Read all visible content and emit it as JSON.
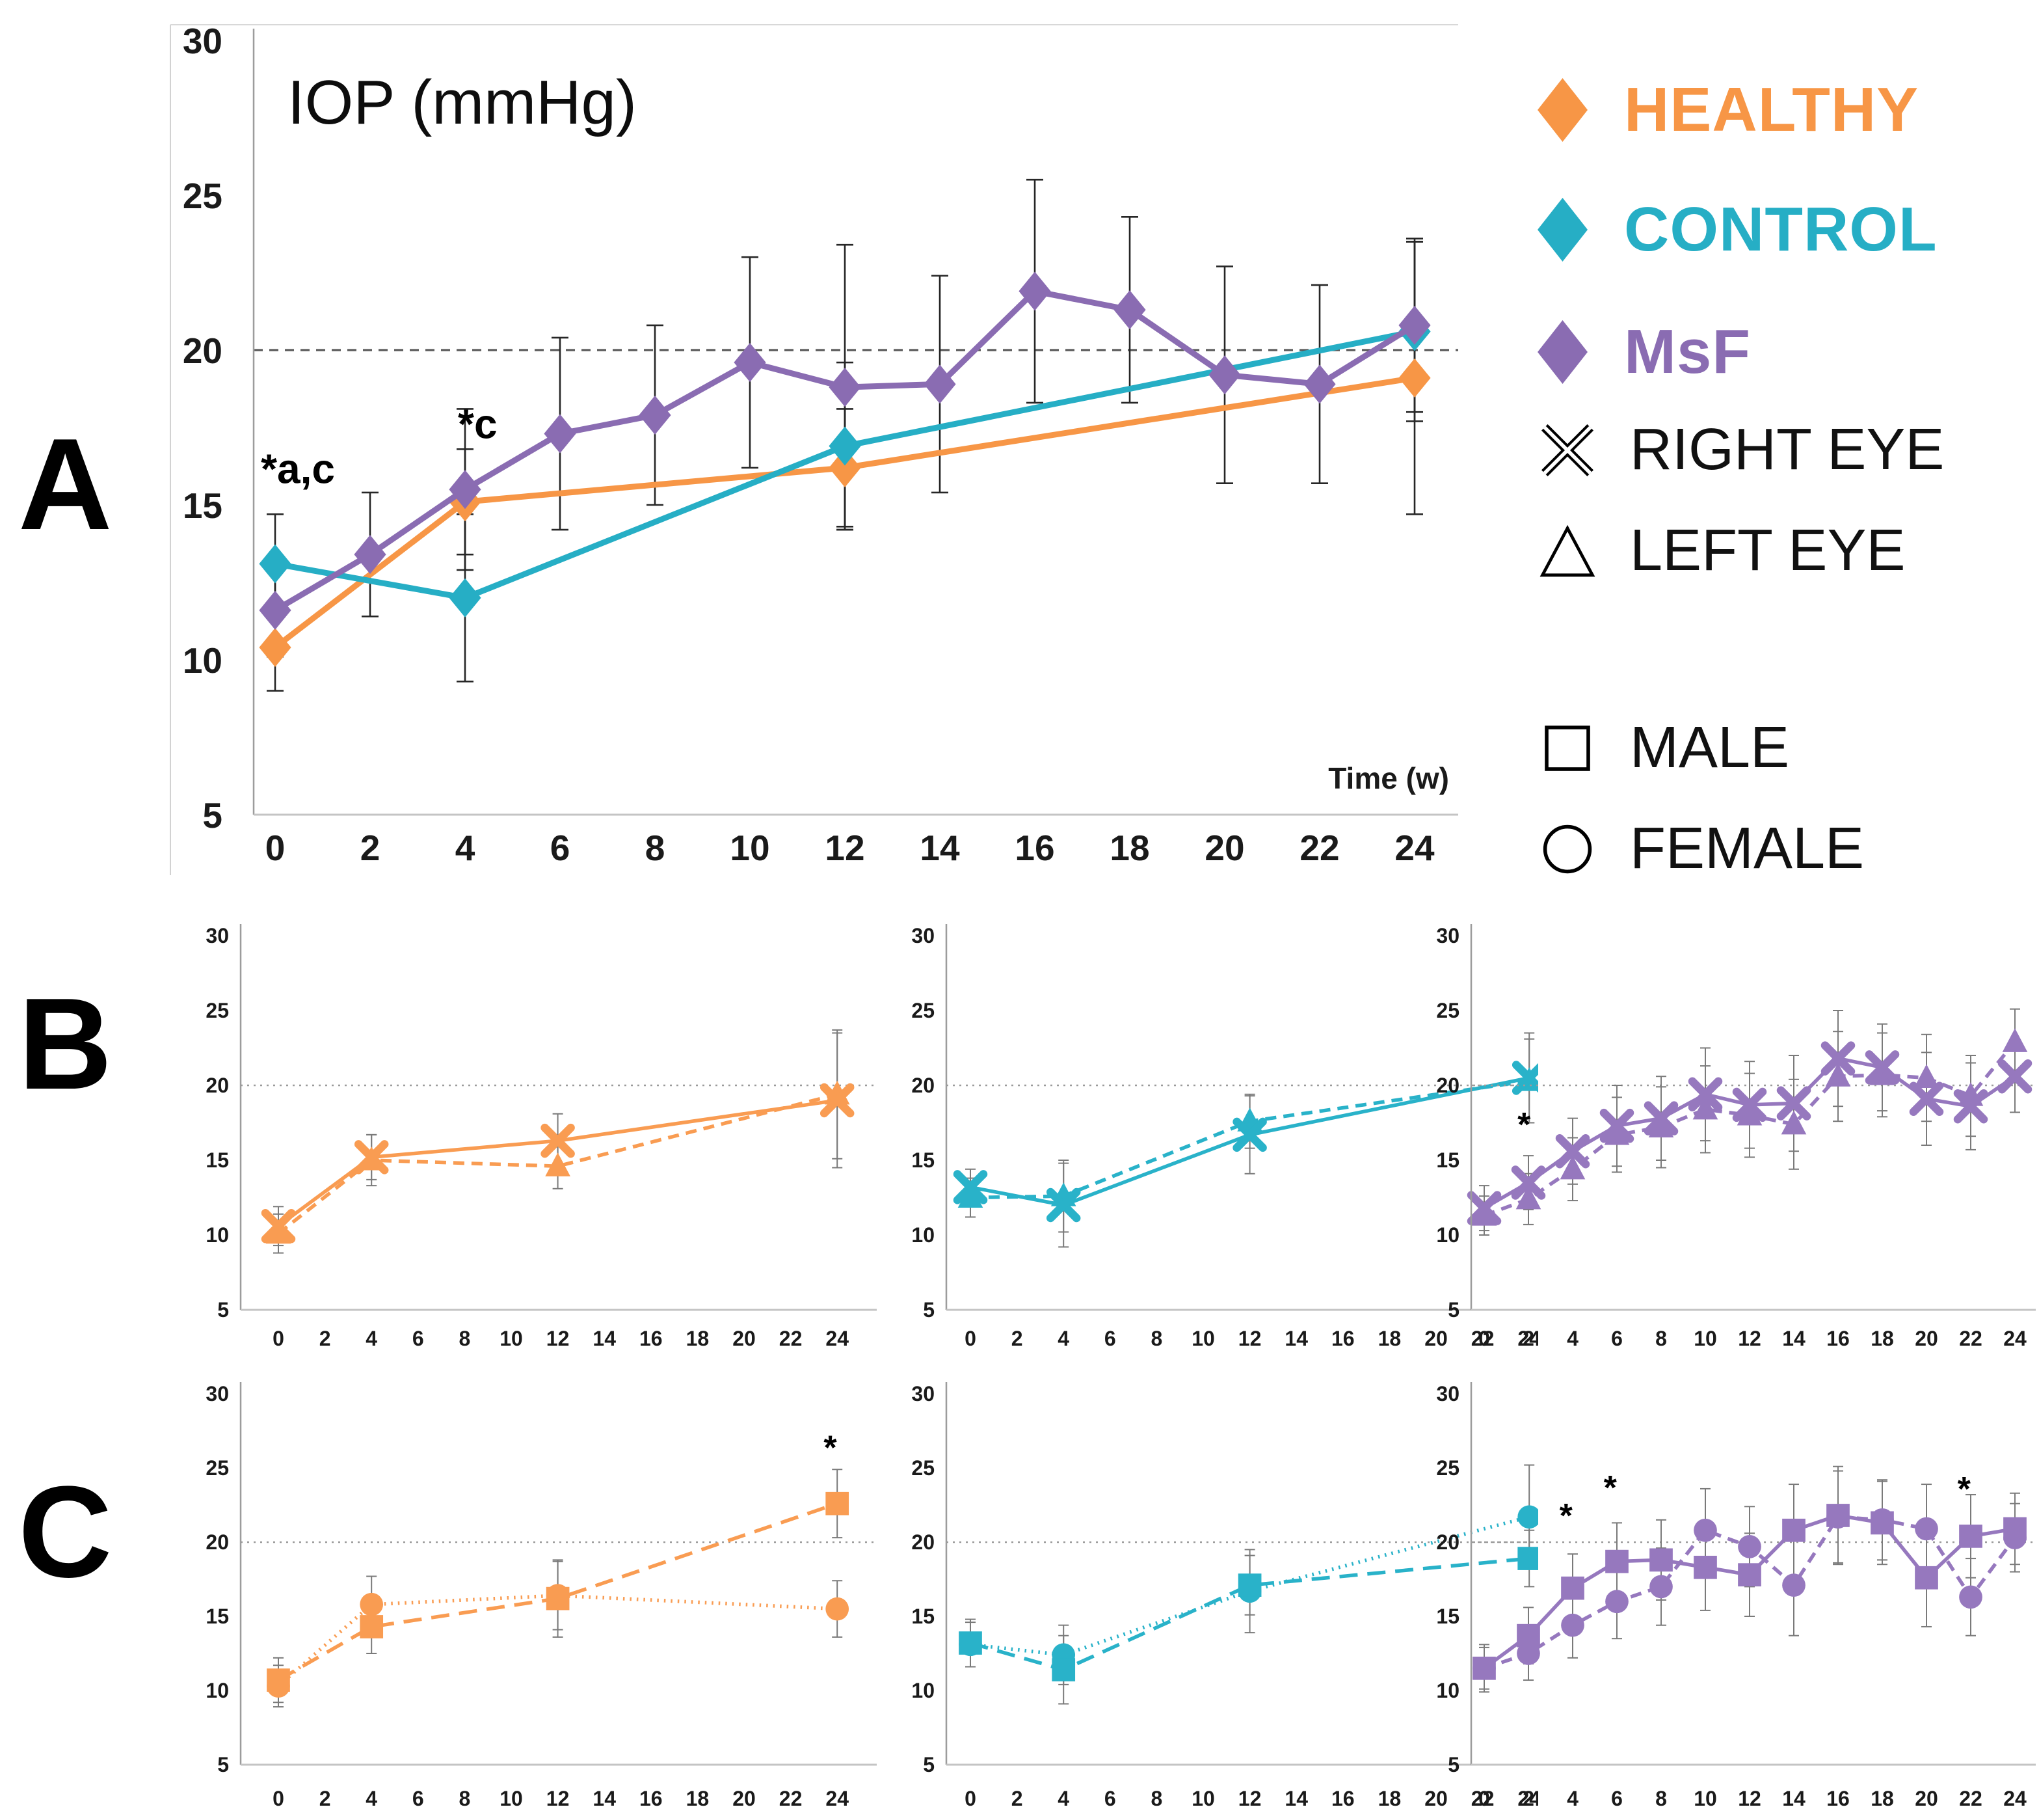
{
  "figure": {
    "background": "#ffffff"
  },
  "panels": [
    {
      "letter": "A"
    },
    {
      "letter": "B"
    },
    {
      "letter": "C"
    }
  ],
  "legend": {
    "series": [
      {
        "label": "HEALTHY",
        "color": "#F79646",
        "marker": "diamond"
      },
      {
        "label": "CONTROL",
        "color": "#26AEC5",
        "marker": "diamond"
      },
      {
        "label": "MsF",
        "color": "#8A6CB2",
        "marker": "diamond"
      }
    ],
    "symbols": [
      {
        "label": "RIGHT EYE",
        "marker": "x"
      },
      {
        "label": "LEFT EYE",
        "marker": "triangle"
      },
      {
        "label": "MALE",
        "marker": "square"
      },
      {
        "label": "FEMALE",
        "marker": "circle"
      }
    ]
  },
  "chart_data": [
    {
      "id": "A",
      "type": "line",
      "title": "IOP (mmHg)",
      "xlabel": "Time (w)",
      "ylim": [
        5,
        30
      ],
      "yticks": [
        30,
        25,
        20,
        15,
        10,
        5
      ],
      "xticks": [
        0,
        2,
        4,
        6,
        8,
        10,
        12,
        14,
        16,
        18,
        20,
        22,
        24
      ],
      "refline": 20,
      "grid": false,
      "legend_position": "right-outside",
      "series": [
        {
          "name": "HEALTHY",
          "color": "#F79646",
          "marker": "diamond",
          "line": "solid",
          "x": [
            0,
            4,
            12,
            24
          ],
          "y": [
            10.4,
            15.1,
            16.2,
            19.1
          ],
          "err": [
            1.4,
            1.7,
            1.9,
            4.4
          ]
        },
        {
          "name": "CONTROL",
          "color": "#26AEC5",
          "marker": "diamond",
          "line": "solid",
          "x": [
            0,
            4,
            12,
            24
          ],
          "y": [
            13.1,
            12.0,
            16.9,
            20.6
          ],
          "err": [
            1.6,
            2.7,
            2.7,
            2.9
          ]
        },
        {
          "name": "MsF",
          "color": "#8A6CB2",
          "marker": "diamond",
          "line": "solid",
          "x": [
            0,
            2,
            4,
            6,
            8,
            10,
            12,
            14,
            16,
            18,
            20,
            22,
            24
          ],
          "y": [
            11.6,
            13.4,
            15.5,
            17.3,
            17.9,
            19.6,
            18.8,
            18.9,
            21.9,
            21.3,
            19.2,
            18.9,
            20.8
          ],
          "err": [
            1.5,
            2.0,
            2.6,
            3.1,
            2.9,
            3.4,
            4.6,
            3.5,
            3.6,
            3.0,
            3.5,
            3.2,
            2.8
          ]
        }
      ],
      "annotations": [
        {
          "x": -0.3,
          "y": 15.7,
          "text": "*a,c",
          "anchor": "start"
        },
        {
          "x": 3.85,
          "y": 17.15,
          "text": "*c",
          "anchor": "start"
        }
      ]
    },
    {
      "id": "B1",
      "type": "line",
      "group": "HEALTHY",
      "ylim": [
        5,
        30
      ],
      "yticks": [
        30,
        25,
        20,
        15,
        10,
        5
      ],
      "xticks": [
        0,
        2,
        4,
        6,
        8,
        10,
        12,
        14,
        16,
        18,
        20,
        22,
        24
      ],
      "refline": 20,
      "series": [
        {
          "name": "LEFT EYE",
          "color": "#F99C52",
          "marker": "triangle",
          "line": "dashed",
          "x": [
            0,
            4,
            12,
            24
          ],
          "y": [
            10.1,
            15.0,
            14.6,
            19.4
          ],
          "err": [
            1.3,
            1.7,
            1.5,
            4.3
          ]
        },
        {
          "name": "RIGHT EYE",
          "color": "#F99C52",
          "marker": "x",
          "line": "solid",
          "x": [
            0,
            4,
            12,
            24
          ],
          "y": [
            10.6,
            15.2,
            16.3,
            19.0
          ],
          "err": [
            1.3,
            1.5,
            1.8,
            4.5
          ]
        }
      ],
      "annotations": []
    },
    {
      "id": "B2",
      "type": "line",
      "group": "CONTROL",
      "ylim": [
        5,
        30
      ],
      "yticks": [
        30,
        25,
        20,
        15,
        10,
        5
      ],
      "xticks": [
        0,
        2,
        4,
        6,
        8,
        10,
        12,
        14,
        16,
        18,
        20,
        22,
        24
      ],
      "refline": 20,
      "series": [
        {
          "name": "LEFT EYE",
          "color": "#29B2C9",
          "marker": "triangle",
          "line": "dashed",
          "x": [
            0,
            4,
            12,
            24
          ],
          "y": [
            12.5,
            12.6,
            17.6,
            20.3
          ],
          "err": [
            1.3,
            2.4,
            1.8,
            2.8
          ]
        },
        {
          "name": "RIGHT EYE",
          "color": "#29B2C9",
          "marker": "x",
          "line": "solid",
          "x": [
            0,
            4,
            12,
            24
          ],
          "y": [
            13.2,
            12.0,
            16.7,
            20.5
          ],
          "err": [
            1.2,
            2.8,
            2.6,
            3.0
          ]
        }
      ],
      "annotations": []
    },
    {
      "id": "B3",
      "type": "line",
      "group": "MsF",
      "ylim": [
        5,
        30
      ],
      "yticks": [
        30,
        25,
        20,
        15,
        10,
        5
      ],
      "xticks": [
        0,
        2,
        4,
        6,
        8,
        10,
        12,
        14,
        16,
        18,
        20,
        22,
        24
      ],
      "refline": 20,
      "series": [
        {
          "name": "LEFT EYE",
          "color": "#9678BE",
          "marker": "triangle",
          "line": "dashed",
          "x": [
            0,
            2,
            4,
            6,
            8,
            10,
            12,
            14,
            16,
            18,
            20,
            22,
            24
          ],
          "y": [
            11.3,
            12.4,
            14.4,
            16.7,
            17.2,
            18.4,
            18.0,
            17.4,
            20.6,
            20.7,
            20.5,
            19.3,
            22.9
          ],
          "err": [
            1.3,
            1.7,
            2.1,
            2.5,
            2.7,
            2.9,
            2.8,
            3.0,
            3.0,
            2.8,
            2.9,
            2.7,
            2.2
          ]
        },
        {
          "name": "RIGHT EYE",
          "color": "#9678BE",
          "marker": "x",
          "line": "solid",
          "x": [
            0,
            2,
            4,
            6,
            8,
            10,
            12,
            14,
            16,
            18,
            20,
            22,
            24
          ],
          "y": [
            11.8,
            13.5,
            15.6,
            17.3,
            17.8,
            19.4,
            18.7,
            18.8,
            21.8,
            21.2,
            19.1,
            18.6,
            20.6
          ],
          "err": [
            1.5,
            1.8,
            2.2,
            2.7,
            2.8,
            3.1,
            2.9,
            3.2,
            3.2,
            2.9,
            3.1,
            2.9,
            2.4
          ]
        }
      ],
      "annotations": [
        {
          "x": 1.8,
          "y": 16.6,
          "text": "*",
          "anchor": "middle"
        }
      ]
    },
    {
      "id": "C1",
      "type": "line",
      "group": "HEALTHY",
      "ylim": [
        5,
        30
      ],
      "yticks": [
        30,
        25,
        20,
        15,
        10,
        5
      ],
      "xticks": [
        0,
        2,
        4,
        6,
        8,
        10,
        12,
        14,
        16,
        18,
        20,
        22,
        24
      ],
      "refline": 20,
      "series": [
        {
          "name": "FEMALE",
          "color": "#F99C52",
          "marker": "circle",
          "line": "dotted",
          "x": [
            0,
            4,
            12,
            24
          ],
          "y": [
            10.3,
            15.8,
            16.4,
            15.5
          ],
          "err": [
            1.4,
            1.9,
            2.3,
            1.9
          ]
        },
        {
          "name": "MALE",
          "color": "#F99C52",
          "marker": "square",
          "line": "longdash",
          "x": [
            0,
            4,
            12,
            24
          ],
          "y": [
            10.7,
            14.3,
            16.2,
            22.6
          ],
          "err": [
            1.5,
            1.8,
            2.6,
            2.3
          ]
        }
      ],
      "annotations": [
        {
          "x": 23.7,
          "y": 25.6,
          "text": "*",
          "anchor": "middle"
        }
      ]
    },
    {
      "id": "C2",
      "type": "line",
      "group": "CONTROL",
      "ylim": [
        5,
        30
      ],
      "yticks": [
        30,
        25,
        20,
        15,
        10,
        5
      ],
      "xticks": [
        0,
        2,
        4,
        6,
        8,
        10,
        12,
        14,
        16,
        18,
        20,
        22,
        24
      ],
      "refline": 20,
      "series": [
        {
          "name": "FEMALE",
          "color": "#29B2C9",
          "marker": "circle",
          "line": "dotted",
          "x": [
            0,
            4,
            12,
            24
          ],
          "y": [
            13.1,
            12.4,
            16.7,
            21.7
          ],
          "err": [
            1.5,
            2.0,
            2.8,
            3.5
          ]
        },
        {
          "name": "MALE",
          "color": "#29B2C9",
          "marker": "square",
          "line": "longdash",
          "x": [
            0,
            4,
            12,
            24
          ],
          "y": [
            13.2,
            11.4,
            17.1,
            18.9
          ],
          "err": [
            1.6,
            2.3,
            2.0,
            1.9
          ]
        }
      ],
      "annotations": []
    },
    {
      "id": "C3",
      "type": "line",
      "group": "MsF",
      "ylim": [
        5,
        30
      ],
      "yticks": [
        30,
        25,
        20,
        15,
        10,
        5
      ],
      "xticks": [
        0,
        2,
        4,
        6,
        8,
        10,
        12,
        14,
        16,
        18,
        20,
        22,
        24
      ],
      "refline": 20,
      "series": [
        {
          "name": "FEMALE",
          "color": "#9678BE",
          "marker": "circle",
          "line": "dashed",
          "x": [
            0,
            2,
            4,
            6,
            8,
            10,
            12,
            14,
            16,
            18,
            20,
            22,
            24
          ],
          "y": [
            11.5,
            12.5,
            14.4,
            16.0,
            17.0,
            20.8,
            19.7,
            17.1,
            21.7,
            21.5,
            20.9,
            16.3,
            20.3
          ],
          "err": [
            1.4,
            1.8,
            2.2,
            2.5,
            2.6,
            2.8,
            2.7,
            3.4,
            3.1,
            2.7,
            3.0,
            2.6,
            2.3
          ]
        },
        {
          "name": "MALE",
          "color": "#9678BE",
          "marker": "square",
          "line": "solid",
          "x": [
            0,
            2,
            4,
            6,
            8,
            10,
            12,
            14,
            16,
            18,
            20,
            22,
            24
          ],
          "y": [
            11.5,
            13.7,
            16.9,
            18.7,
            18.8,
            18.3,
            17.8,
            20.8,
            21.8,
            21.3,
            17.6,
            20.4,
            20.9
          ],
          "err": [
            1.6,
            1.9,
            2.3,
            2.6,
            2.7,
            2.9,
            2.8,
            3.1,
            3.3,
            2.8,
            3.3,
            2.8,
            2.4
          ]
        }
      ],
      "annotations": [
        {
          "x": 3.7,
          "y": 21.0,
          "text": "*",
          "anchor": "middle"
        },
        {
          "x": 5.7,
          "y": 22.9,
          "text": "*",
          "anchor": "middle"
        },
        {
          "x": 21.7,
          "y": 22.8,
          "text": "*",
          "anchor": "middle"
        }
      ]
    }
  ]
}
